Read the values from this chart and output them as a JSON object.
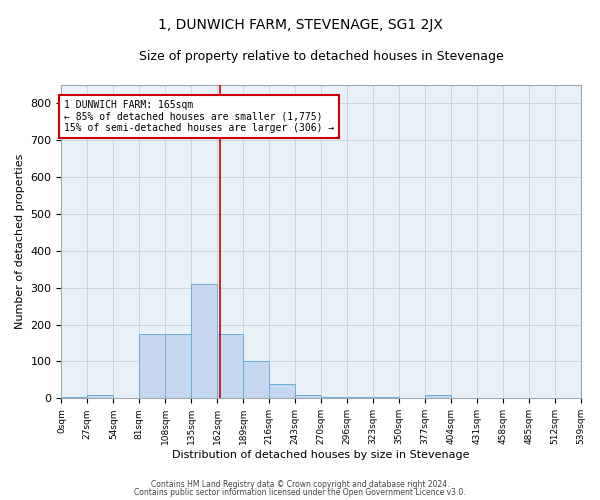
{
  "title": "1, DUNWICH FARM, STEVENAGE, SG1 2JX",
  "subtitle": "Size of property relative to detached houses in Stevenage",
  "xlabel": "Distribution of detached houses by size in Stevenage",
  "ylabel": "Number of detached properties",
  "bin_edges": [
    0,
    27,
    54,
    81,
    108,
    135,
    162,
    189,
    216,
    243,
    270,
    297,
    324,
    351,
    378,
    405,
    432,
    459,
    486,
    513,
    540
  ],
  "bin_labels": [
    "0sqm",
    "27sqm",
    "54sqm",
    "81sqm",
    "108sqm",
    "135sqm",
    "162sqm",
    "189sqm",
    "216sqm",
    "243sqm",
    "270sqm",
    "296sqm",
    "323sqm",
    "350sqm",
    "377sqm",
    "404sqm",
    "431sqm",
    "458sqm",
    "485sqm",
    "512sqm",
    "539sqm"
  ],
  "bar_heights": [
    5,
    10,
    0,
    175,
    175,
    310,
    175,
    100,
    40,
    10,
    5,
    5,
    5,
    0,
    8,
    0,
    0,
    0,
    0,
    0
  ],
  "bar_color": "#c5d8ef",
  "bar_edge_color": "#6aaed6",
  "property_line_x": 165,
  "property_line_color": "#cc0000",
  "annotation_text": "1 DUNWICH FARM: 165sqm\n← 85% of detached houses are smaller (1,775)\n15% of semi-detached houses are larger (306) →",
  "annotation_box_color": "#ffffff",
  "annotation_box_edge_color": "#cc0000",
  "ylim": [
    0,
    850
  ],
  "yticks": [
    0,
    100,
    200,
    300,
    400,
    500,
    600,
    700,
    800
  ],
  "background_color": "#ffffff",
  "grid_color": "#c8d0d8",
  "title_fontsize": 10,
  "subtitle_fontsize": 9,
  "footer_line1": "Contains HM Land Registry data © Crown copyright and database right 2024.",
  "footer_line2": "Contains public sector information licensed under the Open Government Licence v3.0."
}
